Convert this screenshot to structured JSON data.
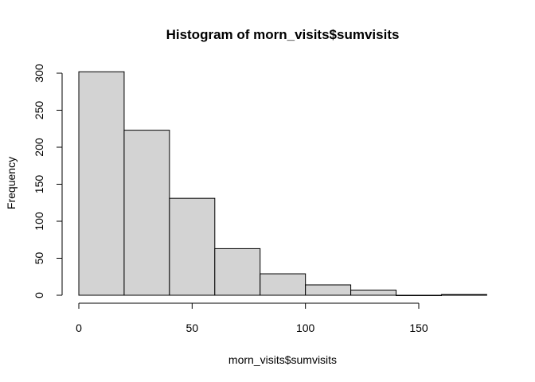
{
  "chart_data": {
    "type": "bar",
    "title": "Histogram of morn_visits$sumvisits",
    "xlabel": "morn_visits$sumvisits",
    "ylabel": "Frequency",
    "bins": [
      {
        "from": 0,
        "to": 20,
        "count": 302
      },
      {
        "from": 20,
        "to": 40,
        "count": 223
      },
      {
        "from": 40,
        "to": 60,
        "count": 131
      },
      {
        "from": 60,
        "to": 80,
        "count": 63
      },
      {
        "from": 80,
        "to": 100,
        "count": 29
      },
      {
        "from": 100,
        "to": 120,
        "count": 14
      },
      {
        "from": 120,
        "to": 140,
        "count": 7
      },
      {
        "from": 140,
        "to": 160,
        "count": 0
      },
      {
        "from": 160,
        "to": 180,
        "count": 1
      }
    ],
    "xlim": [
      0,
      180
    ],
    "ylim": [
      0,
      302
    ],
    "xticks": [
      0,
      50,
      100,
      150
    ],
    "yticks": [
      0,
      50,
      100,
      150,
      200,
      250,
      300
    ],
    "bar_fill": "#d3d3d3",
    "bar_stroke": "#000000",
    "grid": false
  }
}
